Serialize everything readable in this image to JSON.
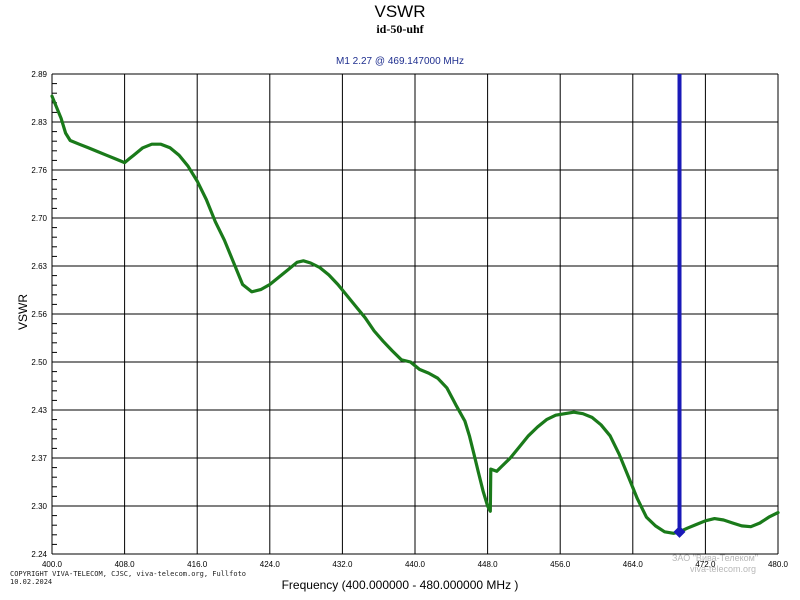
{
  "chart_data": {
    "type": "line",
    "title": "VSWR",
    "subtitle": "id-50-uhf",
    "xlabel": "Frequency (400.000000 - 480.000000 MHz )",
    "ylabel": "VSWR",
    "xlim": [
      400,
      480
    ],
    "ylim": [
      2.24,
      2.89
    ],
    "grid": true,
    "x_ticks": [
      "400.0",
      "408.0",
      "416.0",
      "424.0",
      "432.0",
      "440.0",
      "448.0",
      "456.0",
      "464.0",
      "472.0",
      "480.0"
    ],
    "y_ticks": [
      "2.89",
      "2.83",
      "2.76",
      "2.70",
      "2.63",
      "2.56",
      "2.50",
      "2.43",
      "2.37",
      "2.30",
      "2.24"
    ],
    "series": [
      {
        "color": "#1a7a1a",
        "x": [
          400,
          401,
          401.5,
          402,
          403,
          404,
          405,
          406,
          407,
          408,
          408.5,
          409,
          410,
          411,
          412,
          413,
          414,
          415,
          416,
          417,
          418,
          419,
          420,
          421,
          422,
          423,
          424,
          425,
          426,
          427,
          427.7,
          428.5,
          429.5,
          430.5,
          431.5,
          432.5,
          433.5,
          434.5,
          435.5,
          436.5,
          437.5,
          438.5,
          439.5,
          440.5,
          441.5,
          442.5,
          443.5,
          444.5,
          445.5,
          446,
          446.5,
          447,
          447.5,
          448,
          448.3,
          448.35,
          449,
          449.5,
          450.5,
          451.5,
          452.5,
          453.5,
          454.5,
          455.5,
          456.5,
          457.5,
          458.5,
          459.5,
          460.5,
          461.5,
          462.5,
          463.5,
          464.5,
          465.5,
          466.5,
          467.5,
          468.5,
          469.147,
          470,
          471,
          472,
          473,
          474,
          475,
          476,
          477,
          478,
          479,
          480
        ],
        "y": [
          2.86,
          2.83,
          2.81,
          2.8,
          2.795,
          2.79,
          2.785,
          2.78,
          2.775,
          2.77,
          2.775,
          2.78,
          2.79,
          2.795,
          2.795,
          2.79,
          2.78,
          2.765,
          2.745,
          2.72,
          2.69,
          2.665,
          2.635,
          2.605,
          2.595,
          2.598,
          2.605,
          2.615,
          2.625,
          2.635,
          2.637,
          2.634,
          2.628,
          2.618,
          2.605,
          2.59,
          2.575,
          2.56,
          2.542,
          2.528,
          2.515,
          2.503,
          2.5,
          2.49,
          2.485,
          2.478,
          2.465,
          2.442,
          2.42,
          2.4,
          2.375,
          2.35,
          2.325,
          2.305,
          2.298,
          2.355,
          2.352,
          2.358,
          2.37,
          2.385,
          2.4,
          2.412,
          2.422,
          2.428,
          2.43,
          2.432,
          2.43,
          2.425,
          2.415,
          2.4,
          2.375,
          2.345,
          2.315,
          2.29,
          2.278,
          2.27,
          2.268,
          2.27,
          2.275,
          2.28,
          2.285,
          2.288,
          2.286,
          2.282,
          2.278,
          2.277,
          2.282,
          2.29,
          2.296
        ]
      }
    ],
    "marker": {
      "label": "M1  2.27 @ 469.147000 MHz",
      "x": 469.147,
      "y": 2.27,
      "color": "#1a1ab8"
    }
  },
  "footer": {
    "copyright_line1": "COPYRIGHT VIVA-TELECOM, CJSC, viva-telecom.org, Fullfoto",
    "copyright_line2": "10.02.2024",
    "watermark_line1": "ЗАО \"Вива-Телеком\"",
    "watermark_line2": "viva-telecom.org"
  },
  "colors": {
    "grid": "#000000",
    "trace": "#1a7a1a",
    "marker": "#1a1ab8",
    "title_readout": "#1f2f8f"
  }
}
